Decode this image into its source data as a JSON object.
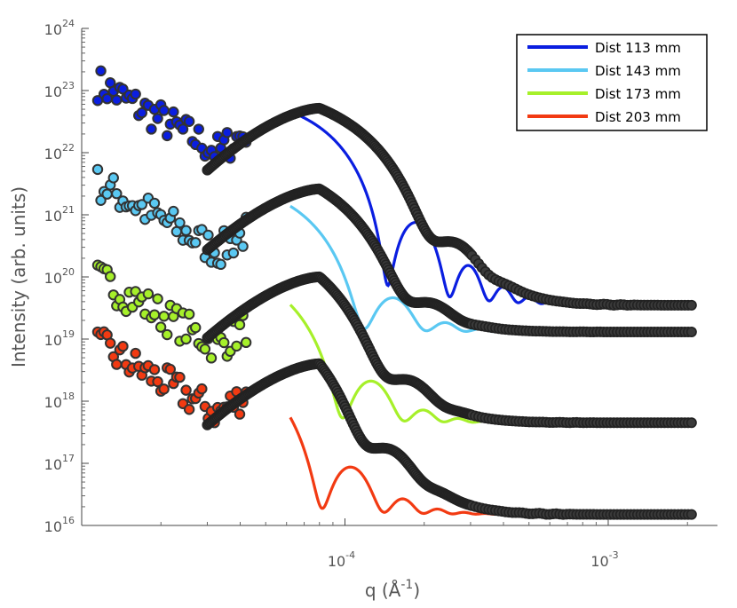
{
  "chart_data": {
    "type": "scatter",
    "title": "",
    "xlabel": "q (Å",
    "xlabel_exp": "-1",
    "xlabel_close": ")",
    "ylabel": "Intensity (arb. units)",
    "xscale": "log",
    "yscale": "log",
    "xlim": [
      1e-05,
      0.0026
    ],
    "ylim": [
      1e+16,
      1e+24
    ],
    "legend_position": "top-right",
    "x_ticks": [
      {
        "value": 0.0001,
        "base": "10",
        "exp": "-4"
      },
      {
        "value": 0.001,
        "base": "10",
        "exp": "-3"
      }
    ],
    "y_ticks": [
      {
        "value": 1e+16,
        "base": "10",
        "exp": "16"
      },
      {
        "value": 1e+17,
        "base": "10",
        "exp": "17"
      },
      {
        "value": 1e+18,
        "base": "10",
        "exp": "18"
      },
      {
        "value": 1e+19,
        "base": "10",
        "exp": "19"
      },
      {
        "value": 1e+20,
        "base": "10",
        "exp": "20"
      },
      {
        "value": 1e+21,
        "base": "10",
        "exp": "21"
      },
      {
        "value": 1e+22,
        "base": "10",
        "exp": "22"
      },
      {
        "value": 1e+23,
        "base": "10",
        "exp": "23"
      },
      {
        "value": 1e+24,
        "base": "10",
        "exp": "24"
      }
    ],
    "series": [
      {
        "name": "Dist 113 mm",
        "color": "#0a1ee0",
        "fit_scale": 1e+23,
        "data_peak": 5.2e+22,
        "baseline": 3.5e+19,
        "noisy_start": 1.3e+23
      },
      {
        "name": "Dist 143 mm",
        "color": "#5ac8f2",
        "fit_scale": 4.6e+21,
        "data_peak": 2.6e+21,
        "baseline": 1.3e+19,
        "noisy_start": 3.2e+21
      },
      {
        "name": "Dist 173 mm",
        "color": "#a6f02a",
        "fit_scale": 2.3e+20,
        "data_peak": 1e+20,
        "baseline": 4.5e+17,
        "noisy_start": 9.5e+19
      },
      {
        "name": "Dist 203 mm",
        "color": "#f23a12",
        "fit_scale": 1e+19,
        "data_peak": 4e+18,
        "baseline": 1.5e+16,
        "noisy_start": 8e+18
      }
    ]
  }
}
